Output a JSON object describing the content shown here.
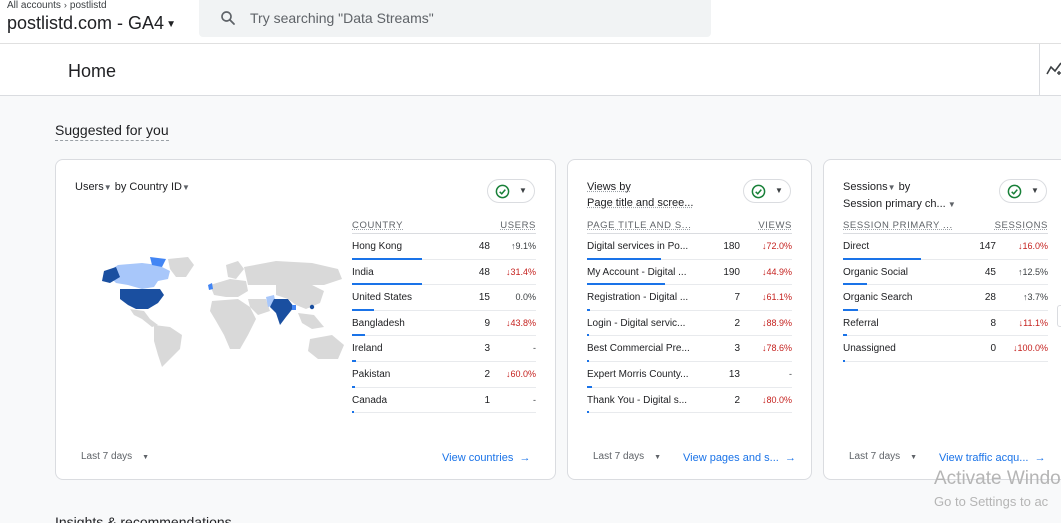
{
  "breadcrumb": {
    "all_accounts": "All accounts",
    "account": "postlistd"
  },
  "property": {
    "name": "postlistd.com - GA4"
  },
  "search": {
    "placeholder": "Try searching \"Data Streams\""
  },
  "page": {
    "title": "Home"
  },
  "suggested": {
    "title": "Suggested for you"
  },
  "insights": {
    "title": "Insights & recommendations"
  },
  "colors": {
    "accent": "#1a73e8",
    "map_dark": "#1a4fa0",
    "map_mid": "#4285f4",
    "map_light": "#a8c7fa",
    "map_none": "#d9d9d9",
    "down": "#c5221f"
  },
  "cards": [
    {
      "title_metric": "Users",
      "title_rest": "by Country ID",
      "col1": "COUNTRY",
      "col2": "USERS",
      "rows": [
        {
          "label": "Hong Kong",
          "value": "48",
          "change": "9.1%",
          "dir": "up",
          "bar": 1.0
        },
        {
          "label": "India",
          "value": "48",
          "change": "31.4%",
          "dir": "down",
          "bar": 1.0
        },
        {
          "label": "United States",
          "value": "15",
          "change": "0.0%",
          "dir": "flat",
          "bar": 0.31
        },
        {
          "label": "Bangladesh",
          "value": "9",
          "change": "43.8%",
          "dir": "down",
          "bar": 0.19
        },
        {
          "label": "Ireland",
          "value": "3",
          "change": "-",
          "dir": "flat",
          "bar": 0.06
        },
        {
          "label": "Pakistan",
          "value": "2",
          "change": "60.0%",
          "dir": "down",
          "bar": 0.04
        },
        {
          "label": "Canada",
          "value": "1",
          "change": "-",
          "dir": "flat",
          "bar": 0.02
        }
      ],
      "range": "Last 7 days",
      "link": "View countries"
    },
    {
      "title_line1": "Views by",
      "title_line2": "Page title and scree...",
      "col1": "PAGE TITLE AND S...",
      "col2": "VIEWS",
      "rows": [
        {
          "label": "Digital services in Po...",
          "value": "180",
          "change": "72.0%",
          "dir": "down",
          "bar": 0.95
        },
        {
          "label": "My Account - Digital ...",
          "value": "190",
          "change": "44.9%",
          "dir": "down",
          "bar": 1.0
        },
        {
          "label": "Registration - Digital ...",
          "value": "7",
          "change": "61.1%",
          "dir": "down",
          "bar": 0.04
        },
        {
          "label": "Login - Digital servic...",
          "value": "2",
          "change": "88.9%",
          "dir": "down",
          "bar": 0.02
        },
        {
          "label": "Best Commercial Pre...",
          "value": "3",
          "change": "78.6%",
          "dir": "down",
          "bar": 0.02
        },
        {
          "label": "Expert Morris County...",
          "value": "13",
          "change": "-",
          "dir": "flat",
          "bar": 0.07
        },
        {
          "label": "Thank You - Digital s...",
          "value": "2",
          "change": "80.0%",
          "dir": "down",
          "bar": 0.02
        }
      ],
      "range": "Last 7 days",
      "link": "View pages and s..."
    },
    {
      "title_metric": "Sessions",
      "title_line1_rest": "by",
      "title_line2": "Session primary ch...",
      "col1": "SESSION PRIMARY ...",
      "col2": "SESSIONS",
      "rows": [
        {
          "label": "Direct",
          "value": "147",
          "change": "16.0%",
          "dir": "down",
          "bar": 1.0
        },
        {
          "label": "Organic Social",
          "value": "45",
          "change": "12.5%",
          "dir": "up",
          "bar": 0.31
        },
        {
          "label": "Organic Search",
          "value": "28",
          "change": "3.7%",
          "dir": "up",
          "bar": 0.19
        },
        {
          "label": "Referral",
          "value": "8",
          "change": "11.1%",
          "dir": "down",
          "bar": 0.05
        },
        {
          "label": "Unassigned",
          "value": "0",
          "change": "100.0%",
          "dir": "down",
          "bar": 0.0
        }
      ],
      "range": "Last 7 days",
      "link": "View traffic acqu..."
    }
  ],
  "watermark": {
    "line1": "Activate Windo",
    "line2": "Go to Settings to ac"
  }
}
